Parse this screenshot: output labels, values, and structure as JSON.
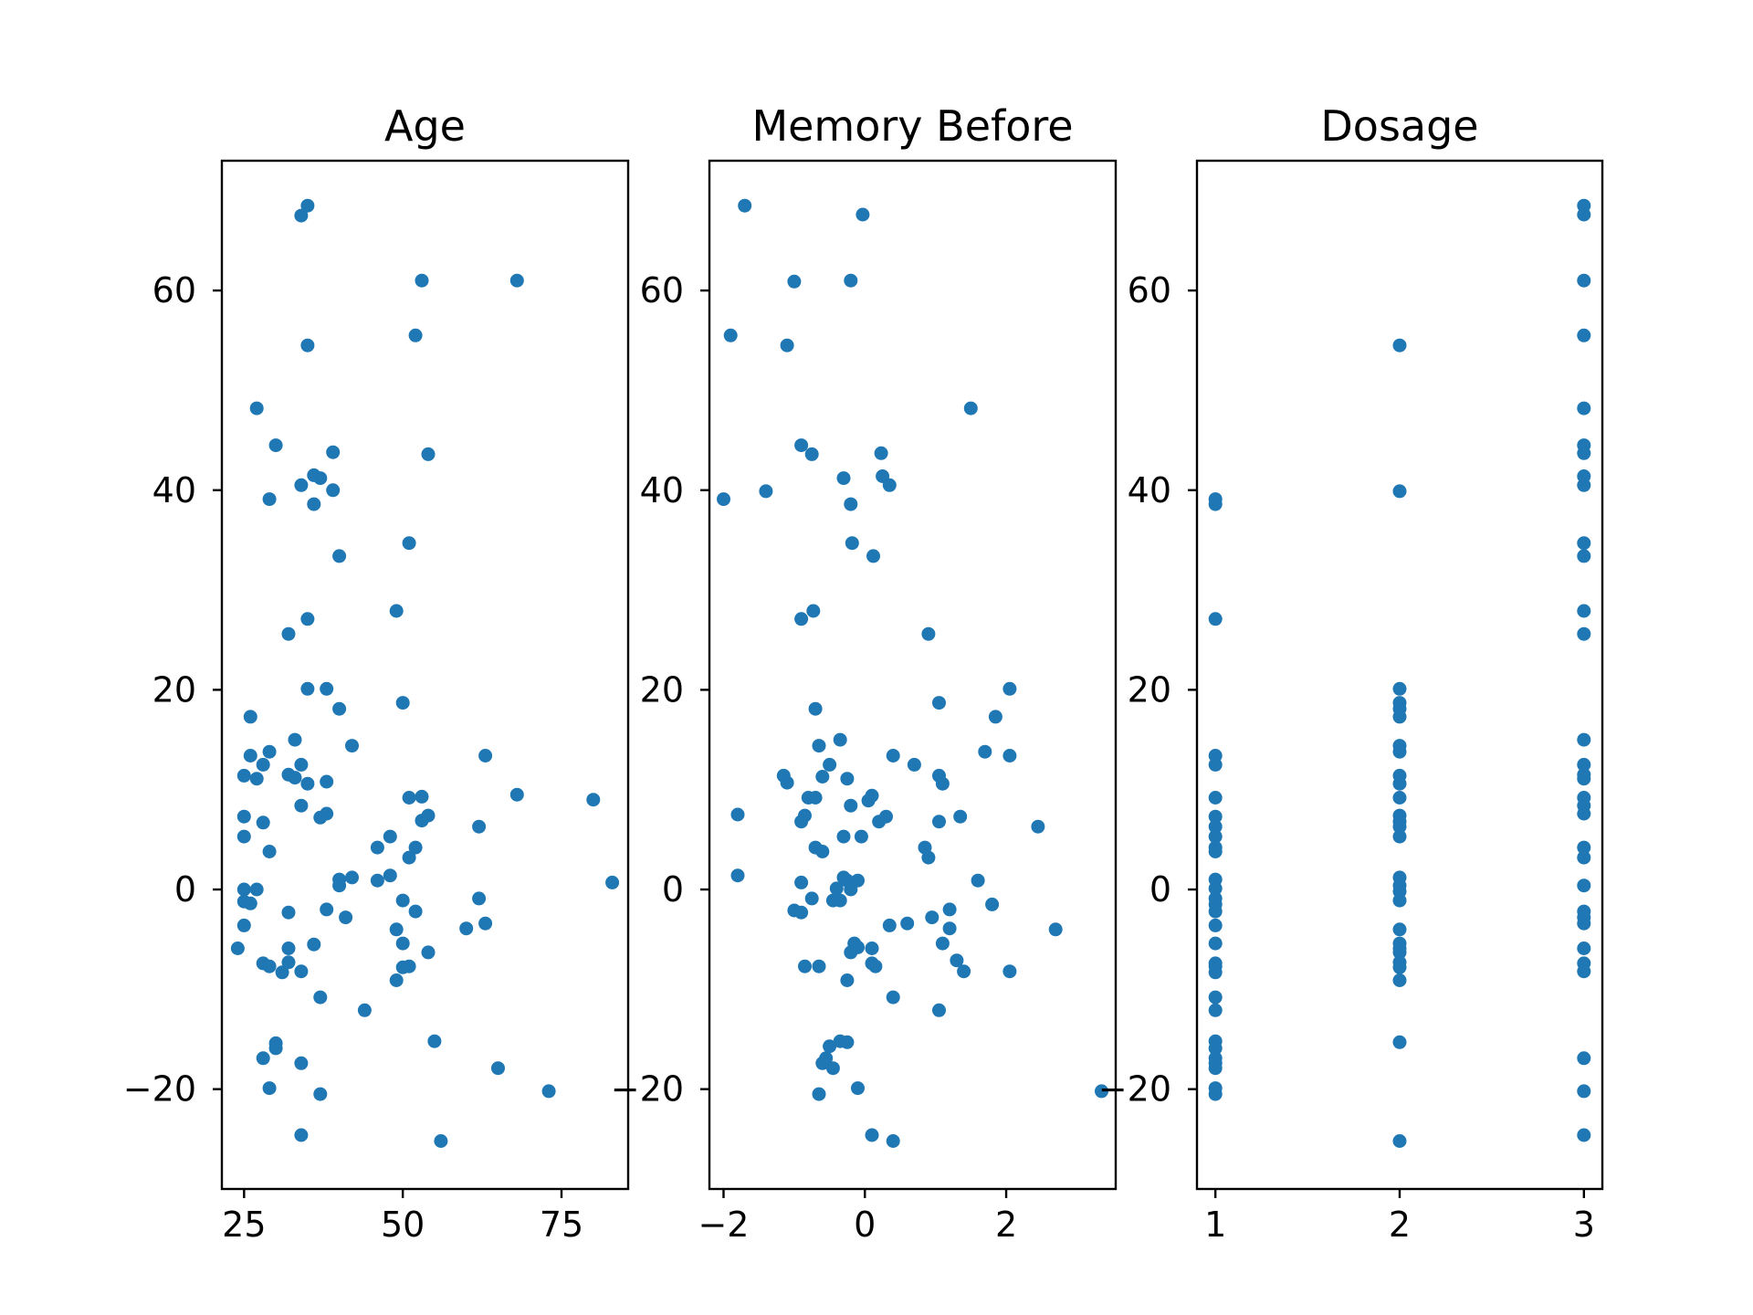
{
  "chart_data": [
    {
      "type": "scatter",
      "title": "Age",
      "xlabel": "",
      "ylabel": "",
      "xlim": [
        21.5,
        85.5
      ],
      "ylim": [
        -30,
        73
      ],
      "xticks": [
        25,
        50,
        75
      ],
      "yticks": [
        -20,
        0,
        20,
        40,
        60
      ],
      "xtick_labels": [
        "25",
        "50",
        "75"
      ],
      "ytick_labels": [
        "−20",
        "0",
        "20",
        "40",
        "60"
      ],
      "grid": false,
      "color": "#1f77b4",
      "points": [
        [
          35,
          68.5
        ],
        [
          34,
          67.5
        ],
        [
          53,
          61
        ],
        [
          68,
          61
        ],
        [
          52,
          55.5
        ],
        [
          35,
          54.5
        ],
        [
          27,
          48.2
        ],
        [
          30,
          44.5
        ],
        [
          39,
          43.8
        ],
        [
          54,
          43.6
        ],
        [
          36,
          41.5
        ],
        [
          37,
          41.2
        ],
        [
          34,
          40.5
        ],
        [
          39,
          40
        ],
        [
          29,
          39.1
        ],
        [
          36,
          38.6
        ],
        [
          40,
          33.4
        ],
        [
          51,
          34.7
        ],
        [
          49,
          27.9
        ],
        [
          35,
          27.1
        ],
        [
          32,
          25.6
        ],
        [
          35,
          20.1
        ],
        [
          38,
          20.1
        ],
        [
          50,
          18.7
        ],
        [
          40,
          18.1
        ],
        [
          26,
          17.3
        ],
        [
          33,
          15
        ],
        [
          42,
          14.4
        ],
        [
          29,
          13.8
        ],
        [
          26,
          13.4
        ],
        [
          63,
          13.4
        ],
        [
          28,
          12.5
        ],
        [
          34,
          12.5
        ],
        [
          25,
          11.4
        ],
        [
          27,
          11.1
        ],
        [
          32,
          11.5
        ],
        [
          33,
          11.2
        ],
        [
          35,
          10.6
        ],
        [
          38,
          10.8
        ],
        [
          51,
          9.2
        ],
        [
          53,
          9.3
        ],
        [
          68,
          9.5
        ],
        [
          80,
          9
        ],
        [
          34,
          8.4
        ],
        [
          38,
          7.6
        ],
        [
          37,
          7.2
        ],
        [
          25,
          7.3
        ],
        [
          28,
          6.7
        ],
        [
          53,
          6.9
        ],
        [
          54,
          7.4
        ],
        [
          62,
          6.3
        ],
        [
          25,
          5.3
        ],
        [
          48,
          5.3
        ],
        [
          46,
          4.2
        ],
        [
          52,
          4.2
        ],
        [
          29,
          3.8
        ],
        [
          51,
          3.2
        ],
        [
          40,
          1
        ],
        [
          42,
          1.2
        ],
        [
          46,
          0.9
        ],
        [
          48,
          1.4
        ],
        [
          83,
          0.7
        ],
        [
          40,
          0.4
        ],
        [
          25,
          0
        ],
        [
          27,
          0
        ],
        [
          25,
          -1.2
        ],
        [
          26,
          -1.4
        ],
        [
          50,
          -1.1
        ],
        [
          62,
          -0.9
        ],
        [
          38,
          -2
        ],
        [
          32,
          -2.3
        ],
        [
          52,
          -2.2
        ],
        [
          41,
          -2.8
        ],
        [
          25,
          -3.6
        ],
        [
          63,
          -3.4
        ],
        [
          60,
          -3.9
        ],
        [
          49,
          -4
        ],
        [
          50,
          -5.4
        ],
        [
          36,
          -5.5
        ],
        [
          24,
          -5.9
        ],
        [
          32,
          -5.9
        ],
        [
          54,
          -6.3
        ],
        [
          28,
          -7.4
        ],
        [
          32,
          -7.3
        ],
        [
          29,
          -7.7
        ],
        [
          51,
          -7.7
        ],
        [
          50,
          -7.8
        ],
        [
          34,
          -8.2
        ],
        [
          31,
          -8.3
        ],
        [
          49,
          -9.1
        ],
        [
          37,
          -10.8
        ],
        [
          44,
          -12.1
        ],
        [
          30,
          -15.4
        ],
        [
          55,
          -15.2
        ],
        [
          30,
          -15.9
        ],
        [
          28,
          -16.9
        ],
        [
          34,
          -17.4
        ],
        [
          65,
          -17.9
        ],
        [
          29,
          -19.9
        ],
        [
          37,
          -20.5
        ],
        [
          73,
          -20.2
        ],
        [
          34,
          -24.6
        ],
        [
          56,
          -25.2
        ]
      ]
    },
    {
      "type": "scatter",
      "title": "Memory Before",
      "xlabel": "",
      "ylabel": "",
      "xlim": [
        -2.2,
        3.55
      ],
      "ylim": [
        -30,
        73
      ],
      "xticks": [
        -2,
        0,
        2
      ],
      "yticks": [
        -20,
        0,
        20,
        40,
        60
      ],
      "xtick_labels": [
        "−2",
        "0",
        "2"
      ],
      "ytick_labels": [
        "−20",
        "0",
        "20",
        "40",
        "60"
      ],
      "grid": false,
      "color": "#1f77b4",
      "points": [
        [
          -1.7,
          68.5
        ],
        [
          -0.03,
          67.6
        ],
        [
          -1.0,
          60.9
        ],
        [
          -0.2,
          61
        ],
        [
          -1.9,
          55.5
        ],
        [
          -1.1,
          54.5
        ],
        [
          1.5,
          48.2
        ],
        [
          -0.9,
          44.5
        ],
        [
          -0.75,
          43.6
        ],
        [
          0.23,
          43.7
        ],
        [
          -0.3,
          41.2
        ],
        [
          0.25,
          41.4
        ],
        [
          0.35,
          40.5
        ],
        [
          -2.0,
          39.1
        ],
        [
          -1.4,
          39.9
        ],
        [
          -0.2,
          38.6
        ],
        [
          -0.18,
          34.7
        ],
        [
          0.12,
          33.4
        ],
        [
          -0.73,
          27.9
        ],
        [
          -0.9,
          27.1
        ],
        [
          0.9,
          25.6
        ],
        [
          2.05,
          20.1
        ],
        [
          1.05,
          18.7
        ],
        [
          -0.7,
          18.1
        ],
        [
          1.85,
          17.3
        ],
        [
          -0.35,
          15
        ],
        [
          -0.65,
          14.4
        ],
        [
          1.7,
          13.8
        ],
        [
          0.4,
          13.4
        ],
        [
          2.05,
          13.4
        ],
        [
          -0.5,
          12.5
        ],
        [
          0.7,
          12.5
        ],
        [
          -1.15,
          11.4
        ],
        [
          -0.6,
          11.3
        ],
        [
          1.05,
          11.4
        ],
        [
          -0.25,
          11.1
        ],
        [
          -1.1,
          10.7
        ],
        [
          1.1,
          10.6
        ],
        [
          -0.8,
          9.2
        ],
        [
          -0.7,
          9.2
        ],
        [
          0.1,
          9.4
        ],
        [
          0.05,
          8.9
        ],
        [
          -0.2,
          8.4
        ],
        [
          -1.8,
          7.5
        ],
        [
          -0.85,
          7.4
        ],
        [
          0.3,
          7.3
        ],
        [
          -0.9,
          6.8
        ],
        [
          0.2,
          6.8
        ],
        [
          1.05,
          6.8
        ],
        [
          1.35,
          7.3
        ],
        [
          2.45,
          6.3
        ],
        [
          -0.3,
          5.3
        ],
        [
          -0.05,
          5.3
        ],
        [
          -0.7,
          4.2
        ],
        [
          0.85,
          4.2
        ],
        [
          -0.6,
          3.8
        ],
        [
          0.9,
          3.2
        ],
        [
          -1.8,
          1.4
        ],
        [
          -0.3,
          1.2
        ],
        [
          -0.25,
          0.9
        ],
        [
          -0.1,
          0.9
        ],
        [
          1.6,
          0.9
        ],
        [
          -0.9,
          0.7
        ],
        [
          -0.4,
          0.1
        ],
        [
          -0.2,
          0
        ],
        [
          -0.75,
          -0.9
        ],
        [
          -0.45,
          -1.1
        ],
        [
          -0.35,
          -1.1
        ],
        [
          1.8,
          -1.5
        ],
        [
          -1.0,
          -2.1
        ],
        [
          -0.9,
          -2.3
        ],
        [
          1.2,
          -2.0
        ],
        [
          0.95,
          -2.8
        ],
        [
          0.35,
          -3.6
        ],
        [
          0.6,
          -3.4
        ],
        [
          1.2,
          -3.9
        ],
        [
          2.7,
          -4
        ],
        [
          -0.15,
          -5.4
        ],
        [
          1.1,
          -5.4
        ],
        [
          -0.1,
          -5.8
        ],
        [
          0.1,
          -5.9
        ],
        [
          -0.2,
          -6.3
        ],
        [
          1.3,
          -7.1
        ],
        [
          -0.85,
          -7.7
        ],
        [
          -0.65,
          -7.7
        ],
        [
          0.1,
          -7.4
        ],
        [
          0.15,
          -7.7
        ],
        [
          1.4,
          -8.2
        ],
        [
          2.05,
          -8.2
        ],
        [
          -0.25,
          -9.1
        ],
        [
          0.4,
          -10.8
        ],
        [
          1.05,
          -12.1
        ],
        [
          -0.5,
          -15.7
        ],
        [
          -0.35,
          -15.2
        ],
        [
          -0.25,
          -15.3
        ],
        [
          -0.55,
          -16.9
        ],
        [
          -0.6,
          -17.4
        ],
        [
          -0.45,
          -17.9
        ],
        [
          -0.1,
          -19.9
        ],
        [
          -0.65,
          -20.5
        ],
        [
          3.35,
          -20.2
        ],
        [
          0.1,
          -24.6
        ],
        [
          0.4,
          -25.2
        ]
      ]
    },
    {
      "type": "scatter",
      "title": "Dosage",
      "xlabel": "",
      "ylabel": "",
      "xlim": [
        0.9,
        3.1
      ],
      "ylim": [
        -30,
        73
      ],
      "xticks": [
        1,
        2,
        3
      ],
      "yticks": [
        -20,
        0,
        20,
        40,
        60
      ],
      "xtick_labels": [
        "1",
        "2",
        "3"
      ],
      "ytick_labels": [
        "−20",
        "0",
        "20",
        "40",
        "60"
      ],
      "grid": false,
      "color": "#1f77b4",
      "points": [
        [
          1,
          39.1
        ],
        [
          1,
          38.6
        ],
        [
          1,
          27.1
        ],
        [
          1,
          13.4
        ],
        [
          1,
          12.5
        ],
        [
          1,
          9.2
        ],
        [
          1,
          7.3
        ],
        [
          1,
          6.3
        ],
        [
          1,
          5.3
        ],
        [
          1,
          4.2
        ],
        [
          1,
          3.8
        ],
        [
          1,
          1
        ],
        [
          1,
          0.1
        ],
        [
          1,
          -0.9
        ],
        [
          1,
          -1.5
        ],
        [
          1,
          -2.2
        ],
        [
          1,
          -3.6
        ],
        [
          1,
          -5.4
        ],
        [
          1,
          -7.4
        ],
        [
          1,
          -7.7
        ],
        [
          1,
          -8.3
        ],
        [
          1,
          -10.8
        ],
        [
          1,
          -12.1
        ],
        [
          1,
          -15.2
        ],
        [
          1,
          -15.9
        ],
        [
          1,
          -16.9
        ],
        [
          1,
          -17.4
        ],
        [
          1,
          -17.9
        ],
        [
          1,
          -19.9
        ],
        [
          1,
          -20.5
        ],
        [
          2,
          54.5
        ],
        [
          2,
          39.9
        ],
        [
          2,
          20.1
        ],
        [
          2,
          18.7
        ],
        [
          2,
          18.1
        ],
        [
          2,
          17.3
        ],
        [
          2,
          14.4
        ],
        [
          2,
          13.8
        ],
        [
          2,
          11.4
        ],
        [
          2,
          10.6
        ],
        [
          2,
          9.2
        ],
        [
          2,
          7.4
        ],
        [
          2,
          6.8
        ],
        [
          2,
          6.3
        ],
        [
          2,
          5.3
        ],
        [
          2,
          1.2
        ],
        [
          2,
          0.4
        ],
        [
          2,
          -0.2
        ],
        [
          2,
          -1.1
        ],
        [
          2,
          -4
        ],
        [
          2,
          -5.4
        ],
        [
          2,
          -5.9
        ],
        [
          2,
          -6.3
        ],
        [
          2,
          -7.3
        ],
        [
          2,
          -7.8
        ],
        [
          2,
          -9.1
        ],
        [
          2,
          -15.3
        ],
        [
          2,
          -25.2
        ],
        [
          3,
          68.5
        ],
        [
          3,
          67.6
        ],
        [
          3,
          61
        ],
        [
          3,
          55.5
        ],
        [
          3,
          48.2
        ],
        [
          3,
          44.5
        ],
        [
          3,
          43.7
        ],
        [
          3,
          41.4
        ],
        [
          3,
          40.5
        ],
        [
          3,
          34.7
        ],
        [
          3,
          33.4
        ],
        [
          3,
          27.9
        ],
        [
          3,
          25.6
        ],
        [
          3,
          15
        ],
        [
          3,
          12.5
        ],
        [
          3,
          11.5
        ],
        [
          3,
          11.1
        ],
        [
          3,
          9.2
        ],
        [
          3,
          8.4
        ],
        [
          3,
          7.6
        ],
        [
          3,
          4.2
        ],
        [
          3,
          3.2
        ],
        [
          3,
          0.4
        ],
        [
          3,
          -2.2
        ],
        [
          3,
          -2.8
        ],
        [
          3,
          -3.4
        ],
        [
          3,
          -5.9
        ],
        [
          3,
          -7.4
        ],
        [
          3,
          -8.2
        ],
        [
          3,
          -16.9
        ],
        [
          3,
          -20.2
        ],
        [
          3,
          -24.6
        ]
      ]
    }
  ]
}
